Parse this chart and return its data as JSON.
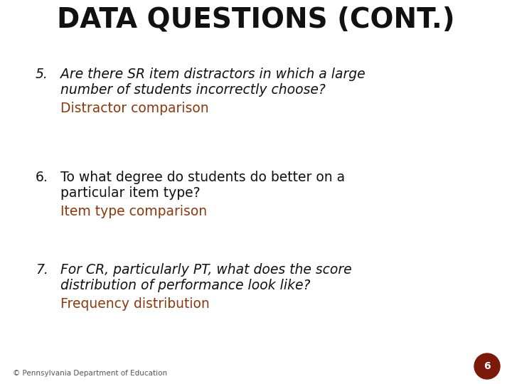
{
  "title": "DATA QUESTIONS (CONT.)",
  "title_color": "#111111",
  "title_fontsize": 28,
  "background_color": "#ffffff",
  "items": [
    {
      "number": "5.",
      "question_line1": "Are there SR item distractors in which a large",
      "question_line2": "number of students incorrectly choose?",
      "answer": "Distractor comparison",
      "q_italic": true,
      "q_color": "#111111",
      "a_color": "#8B3A10"
    },
    {
      "number": "6.",
      "question_line1": "To what degree do students do better on a",
      "question_line2": "particular item type?",
      "answer": "Item type comparison",
      "q_italic": false,
      "q_color": "#111111",
      "a_color": "#8B3A10"
    },
    {
      "number": "7.",
      "question_line1": "For CR, particularly PT, what does the score",
      "question_line2": "distribution of performance look like?",
      "answer": "Frequency distribution",
      "q_italic": true,
      "q_color": "#111111",
      "a_color": "#8B3A10"
    }
  ],
  "footer_text": "© Pennsylvania Department of Education",
  "footer_color": "#555555",
  "footer_fontsize": 7.5,
  "page_number": "6",
  "page_circle_color": "#7B1A0A",
  "page_number_color": "#ffffff",
  "item_fontsize": 13.5,
  "answer_fontsize": 13.5,
  "number_fontsize": 13.5
}
